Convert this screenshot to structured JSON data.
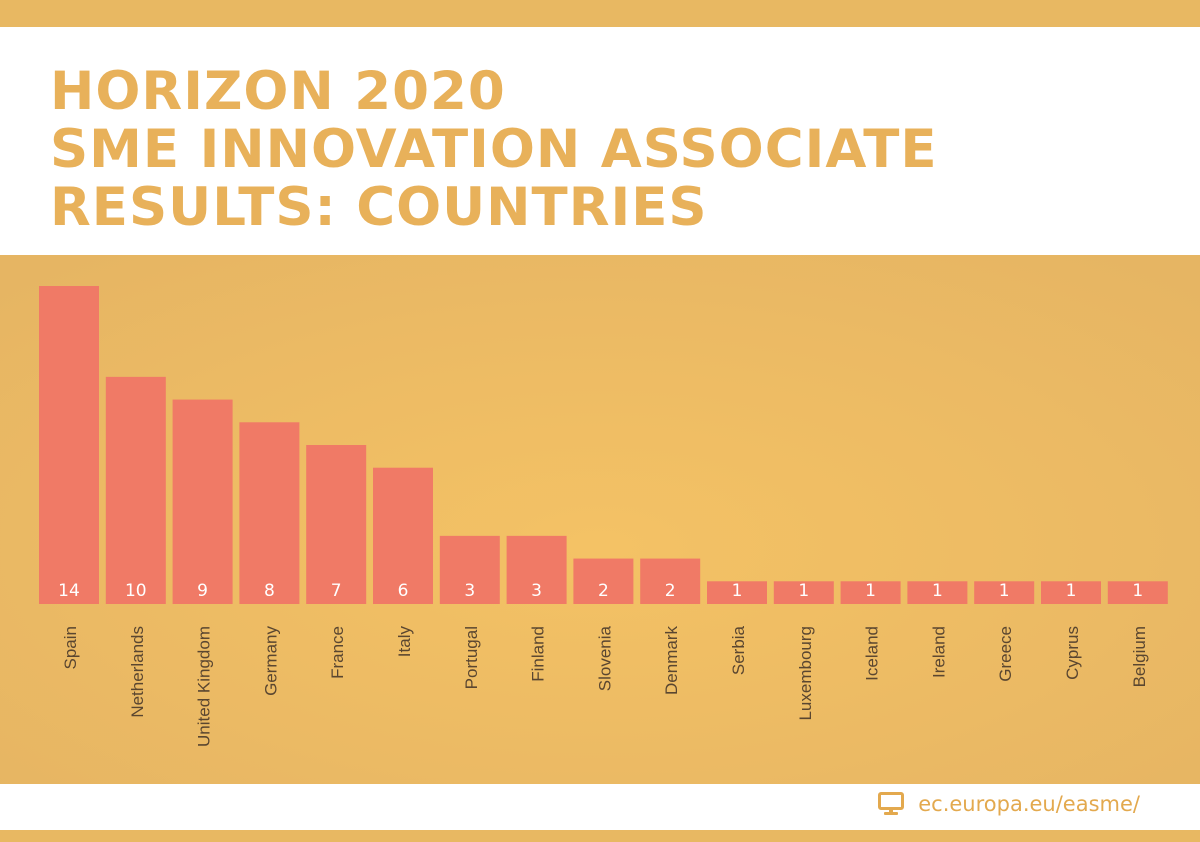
{
  "colors": {
    "band": "#e8b862",
    "panel_center": "#f4c265",
    "panel_edge": "#e6b563",
    "title": "#e8b15a",
    "bar": "#f07a66",
    "bar_label": "#ffffff",
    "axis_label": "#5a4630",
    "footer_text": "#e3a94e"
  },
  "header": {
    "title_lines": [
      "HORIZON 2020",
      "SME INNOVATION ASSOCIATE",
      "RESULTS: COUNTRIES"
    ]
  },
  "footer": {
    "link_text": "ec.europa.eu/easme/",
    "icon": "monitor-icon"
  },
  "chart_data": {
    "type": "bar",
    "title": "HORIZON 2020 SME INNOVATION ASSOCIATE RESULTS: COUNTRIES",
    "xlabel": "",
    "ylabel": "",
    "ylim": [
      0,
      14
    ],
    "grid": false,
    "legend": "none",
    "tick_label_orientation": "vertical",
    "categories": [
      "Spain",
      "Netherlands",
      "United Kingdom",
      "Germany",
      "France",
      "Italy",
      "Portugal",
      "Finland",
      "Slovenia",
      "Denmark",
      "Serbia",
      "Luxembourg",
      "Iceland",
      "Ireland",
      "Greece",
      "Cyprus",
      "Belgium"
    ],
    "values": [
      14,
      10,
      9,
      8,
      7,
      6,
      3,
      3,
      2,
      2,
      1,
      1,
      1,
      1,
      1,
      1,
      1
    ]
  }
}
